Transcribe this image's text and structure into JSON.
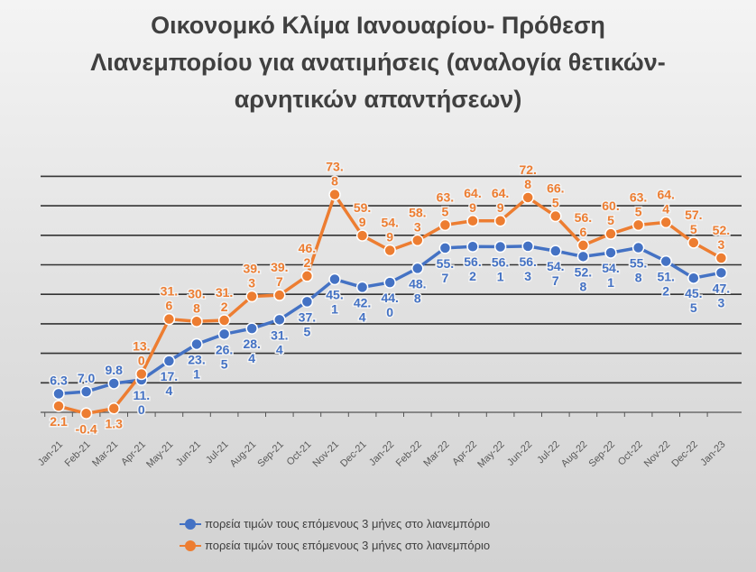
{
  "chart_data": {
    "type": "line",
    "title": "Οικονομκό Κλίμα Ιανουαρίου- Πρόθεση Λιανεμπορίου για ανατιμήσεις (αναλογία θετικών- αρνητικών απαντήσεων)",
    "categories": [
      "Jan-21",
      "Feb-21",
      "Mar-21",
      "Apr-21",
      "May-21",
      "Jun-21",
      "Jul-21",
      "Aug-21",
      "Sep-21",
      "Oct-21",
      "Nov-21",
      "Dec-21",
      "Jan-22",
      "Feb-22",
      "Mar-22",
      "Apr-22",
      "May-22",
      "Jun-22",
      "Jul-22",
      "Aug-22",
      "Sep-22",
      "Oct-22",
      "Nov-22",
      "Dec-22",
      "Jan-23"
    ],
    "series": [
      {
        "name": "πορεία τιμών τους επόμενους 3 μήνες στο λιανεμπόριο",
        "color": "#4472c4",
        "values": [
          6.3,
          7.0,
          9.8,
          11.0,
          17.4,
          23.1,
          26.5,
          28.4,
          31.4,
          37.5,
          45.1,
          42.4,
          44.0,
          48.8,
          55.7,
          56.2,
          56.1,
          56.3,
          54.7,
          52.8,
          54.1,
          55.8,
          51.2,
          45.5,
          47.3
        ]
      },
      {
        "name": "πορεία τιμών τους επόμενους 3 μήνες στο λιανεμπόριο",
        "color": "#ed7d31",
        "values": [
          2.1,
          -0.4,
          1.3,
          13.0,
          31.6,
          30.8,
          31.2,
          39.3,
          39.7,
          46.2,
          73.8,
          59.9,
          54.9,
          58.3,
          63.5,
          64.9,
          64.9,
          72.8,
          66.5,
          56.6,
          60.5,
          63.5,
          64.4,
          57.5,
          52.3
        ]
      }
    ],
    "ylim": [
      0,
      80
    ],
    "grid": true,
    "legend": "bottom"
  }
}
